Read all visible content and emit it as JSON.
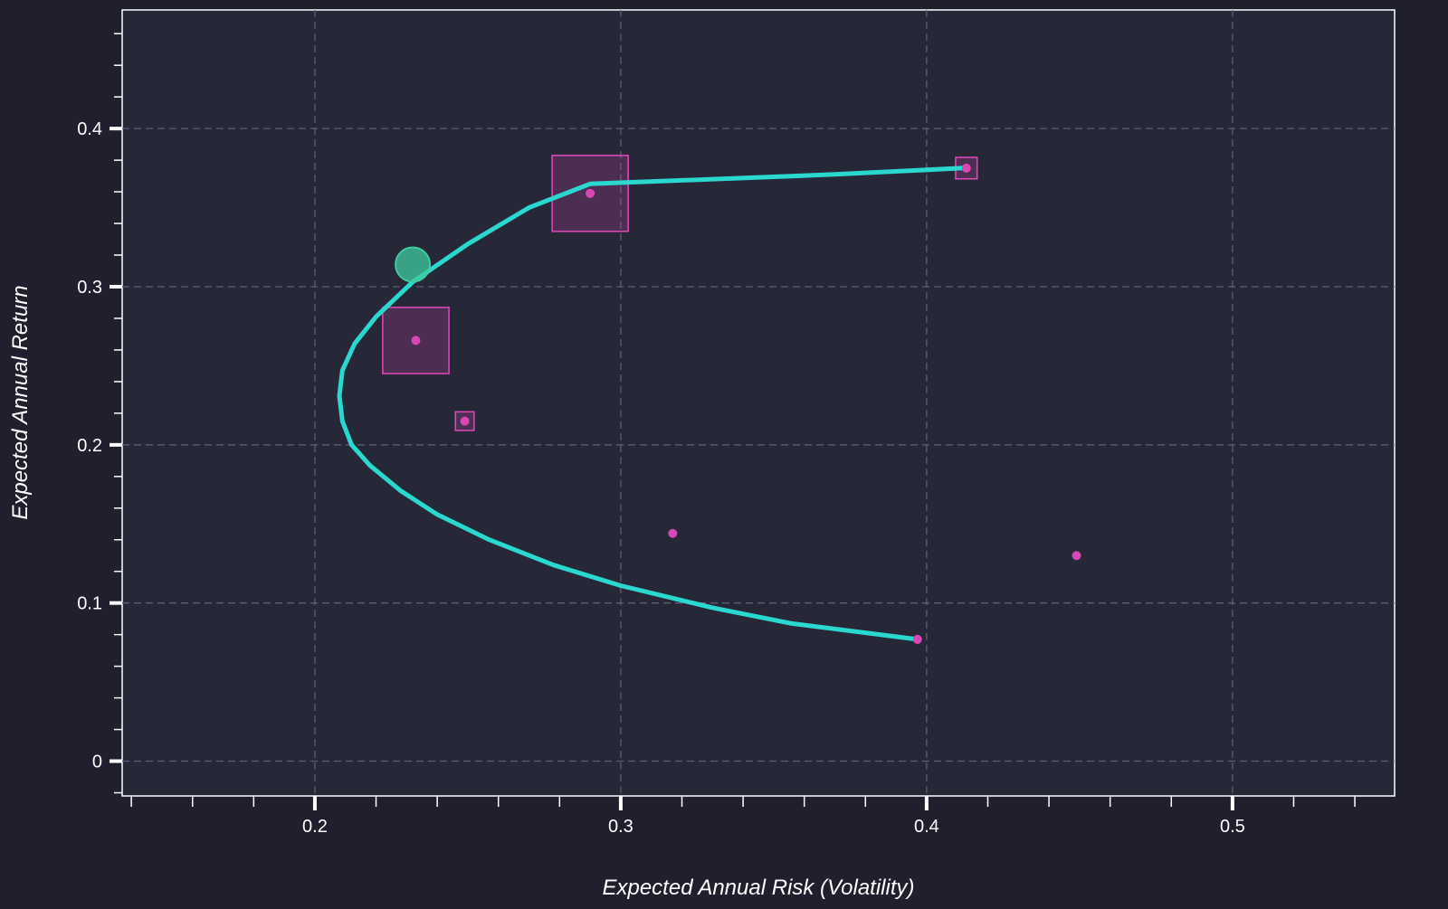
{
  "chart_data": {
    "type": "scatter",
    "title": "",
    "xlabel": "Expected Annual Risk (Volatility)",
    "ylabel": "Expected Annual Return",
    "xlim": [
      0.137,
      0.553
    ],
    "ylim": [
      -0.022,
      0.475
    ],
    "x_ticks": [
      0.2,
      0.3,
      0.4,
      0.5
    ],
    "x_tick_labels": [
      "0.2",
      "0.3",
      "0.4",
      "0.5"
    ],
    "x_minor_step": 0.02,
    "y_ticks": [
      0,
      0.1,
      0.2,
      0.3,
      0.4
    ],
    "y_tick_labels": [
      "0",
      "0.1",
      "0.2",
      "0.3",
      "0.4"
    ],
    "y_minor_step": 0.02,
    "grid": true,
    "colors": {
      "frontier": "#2ad8d0",
      "assets": "#d946b5",
      "highlight": "#3ecba0",
      "plot_background": "#262838",
      "page_background": "#1f1f2e"
    },
    "series": [
      {
        "type": "line",
        "x": [
          0.397,
          0.356,
          0.33,
          0.3,
          0.278,
          0.257,
          0.24,
          0.228,
          0.218,
          0.212,
          0.209,
          0.208,
          0.209,
          0.213,
          0.22,
          0.232,
          0.25,
          0.27,
          0.29,
          0.33,
          0.37,
          0.412
        ],
        "y": [
          0.077,
          0.087,
          0.097,
          0.111,
          0.124,
          0.14,
          0.156,
          0.171,
          0.187,
          0.2,
          0.215,
          0.231,
          0.247,
          0.264,
          0.281,
          0.303,
          0.327,
          0.35,
          0.365,
          0.368,
          0.371,
          0.375
        ]
      },
      {
        "type": "scatter",
        "x": [
          0.397,
          0.413,
          0.29,
          0.233,
          0.249,
          0.317,
          0.449
        ],
        "y": [
          0.077,
          0.375,
          0.359,
          0.266,
          0.215,
          0.144,
          0.13
        ],
        "weights": [
          0,
          0.02,
          0.25,
          0.19,
          0.015,
          0,
          0
        ]
      },
      {
        "type": "highlight-point",
        "x": 0.232,
        "y": 0.314
      }
    ]
  }
}
